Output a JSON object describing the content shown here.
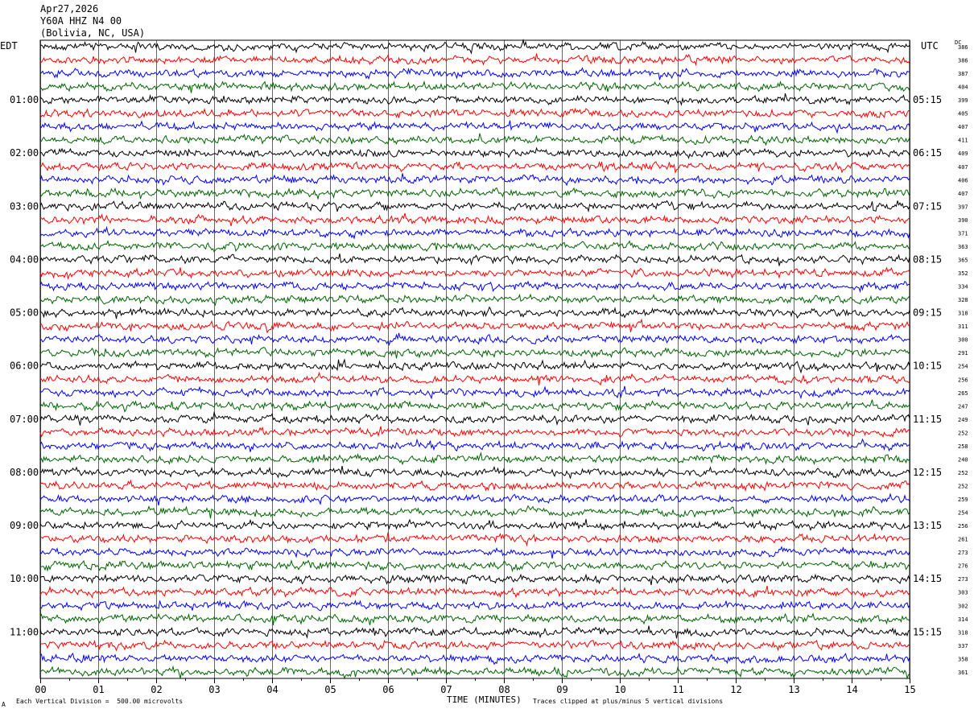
{
  "header": {
    "date": "Apr27,2026",
    "station": "Y60A HHZ N4 00",
    "location": "(Bolivia, NC, USA)"
  },
  "left_timezone": "EDT",
  "right_timezone": "UTC",
  "dc_label": "DC",
  "footer": {
    "scale": "Each Vertical Division =  500.00 microvolts",
    "clip": "Traces clipped at plus/minus 5 vertical divisions",
    "mark": "A"
  },
  "colors": {
    "trace_cycle": [
      "#000000",
      "#ff0000",
      "#0000ff",
      "#006400"
    ],
    "grid": "#000000",
    "background": "#ffffff"
  },
  "chart_data": {
    "type": "line",
    "title": "Y60A HHZ N4 00",
    "xlabel": "TIME (MINUTES)",
    "ylabel": "",
    "x_ticks": [
      "00",
      "01",
      "02",
      "03",
      "04",
      "05",
      "06",
      "07",
      "08",
      "09",
      "10",
      "11",
      "12",
      "13",
      "14",
      "15"
    ],
    "xlim": [
      0,
      15
    ],
    "grid": "vertical lines at each minute",
    "rows_per_hour": 4,
    "left_hour_labels": [
      "01:00",
      "02:00",
      "03:00",
      "04:00",
      "05:00",
      "06:00",
      "07:00",
      "08:00",
      "09:00",
      "10:00",
      "11:00"
    ],
    "right_hour_labels": [
      "05:15",
      "06:15",
      "07:15",
      "08:15",
      "09:15",
      "10:15",
      "11:15",
      "12:15",
      "13:15",
      "14:15",
      "15:15"
    ],
    "dc_offsets": [
      386,
      386,
      387,
      404,
      399,
      405,
      407,
      411,
      409,
      407,
      406,
      407,
      397,
      390,
      371,
      363,
      365,
      352,
      334,
      328,
      318,
      311,
      300,
      291,
      254,
      256,
      265,
      247,
      249,
      252,
      258,
      240,
      252,
      252,
      259,
      254,
      256,
      261,
      273,
      276,
      273,
      303,
      302,
      314,
      318,
      337,
      358,
      361
    ]
  }
}
